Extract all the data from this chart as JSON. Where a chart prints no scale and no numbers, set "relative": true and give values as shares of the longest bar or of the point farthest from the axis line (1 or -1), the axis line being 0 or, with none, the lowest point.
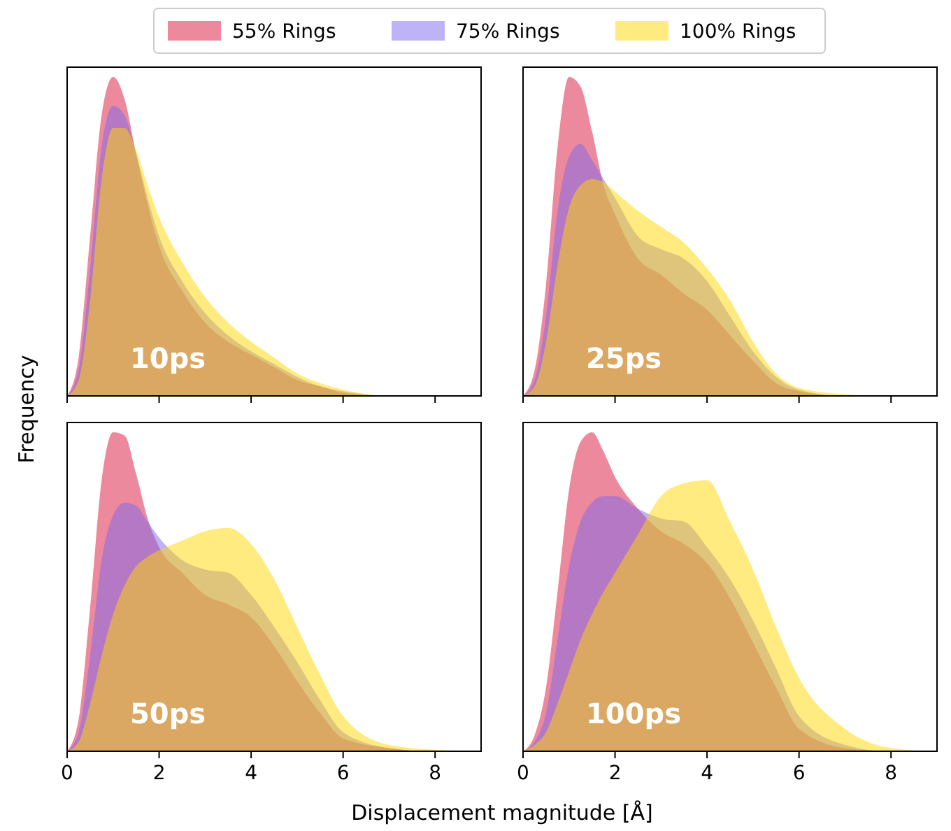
{
  "chart_data": [
    {
      "type": "area",
      "relative": true,
      "legend": "top",
      "ylabel": "Frequency",
      "tick_labels": false,
      "xlim": [
        0,
        9
      ],
      "xticks": [
        0,
        2,
        4,
        6,
        8
      ],
      "annotations": [
        "10ps"
      ],
      "x": [
        0,
        0.25,
        0.5,
        0.75,
        1,
        1.25,
        1.5,
        1.75,
        2,
        2.5,
        3,
        3.5,
        4,
        4.5,
        5,
        5.5,
        6,
        7,
        8,
        9
      ],
      "series": [
        {
          "name": "55% Rings",
          "color": "#dc143c",
          "values": [
            0,
            0.12,
            0.5,
            0.88,
            1.0,
            0.93,
            0.76,
            0.6,
            0.47,
            0.33,
            0.23,
            0.17,
            0.13,
            0.09,
            0.05,
            0.03,
            0.01,
            0,
            0,
            0
          ]
        },
        {
          "name": "75% Rings",
          "color": "#7b68ee",
          "values": [
            0,
            0.08,
            0.4,
            0.78,
            0.91,
            0.88,
            0.76,
            0.62,
            0.5,
            0.36,
            0.26,
            0.19,
            0.14,
            0.1,
            0.06,
            0.03,
            0.015,
            0,
            0,
            0
          ]
        },
        {
          "name": "100% Rings",
          "color": "#ffd700",
          "values": [
            0,
            0.05,
            0.3,
            0.68,
            0.84,
            0.84,
            0.77,
            0.66,
            0.56,
            0.42,
            0.31,
            0.23,
            0.17,
            0.12,
            0.07,
            0.04,
            0.02,
            0,
            0,
            0
          ]
        }
      ]
    },
    {
      "type": "area",
      "relative": true,
      "tick_labels": false,
      "xlim": [
        0,
        9
      ],
      "xticks": [
        0,
        2,
        4,
        6,
        8
      ],
      "annotations": [
        "25ps"
      ],
      "x": [
        0,
        0.25,
        0.5,
        0.75,
        1,
        1.25,
        1.5,
        1.75,
        2,
        2.5,
        3,
        3.5,
        4,
        4.5,
        5,
        5.5,
        6,
        7,
        8,
        9
      ],
      "series": [
        {
          "color": "#dc143c",
          "values": [
            0,
            0.08,
            0.35,
            0.78,
            1.0,
            0.97,
            0.83,
            0.66,
            0.57,
            0.43,
            0.38,
            0.32,
            0.27,
            0.19,
            0.11,
            0.04,
            0.015,
            0,
            0,
            0
          ]
        },
        {
          "color": "#7b68ee",
          "values": [
            0,
            0.05,
            0.25,
            0.58,
            0.75,
            0.79,
            0.74,
            0.68,
            0.62,
            0.5,
            0.46,
            0.43,
            0.36,
            0.25,
            0.14,
            0.06,
            0.02,
            0,
            0,
            0
          ]
        },
        {
          "color": "#ffd700",
          "values": [
            0,
            0.03,
            0.17,
            0.41,
            0.59,
            0.66,
            0.68,
            0.67,
            0.64,
            0.58,
            0.53,
            0.48,
            0.4,
            0.3,
            0.17,
            0.07,
            0.025,
            0.005,
            0,
            0
          ]
        }
      ]
    },
    {
      "type": "area",
      "relative": true,
      "xlabel": "Displacement magnitude [Å]",
      "xlim": [
        0,
        9
      ],
      "xticks": [
        0,
        2,
        4,
        6,
        8
      ],
      "annotations": [
        "50ps"
      ],
      "x": [
        0,
        0.25,
        0.5,
        0.75,
        1,
        1.25,
        1.5,
        1.75,
        2,
        2.5,
        3,
        3.5,
        4,
        4.5,
        5,
        5.5,
        6,
        7,
        8,
        9
      ],
      "series": [
        {
          "color": "#dc143c",
          "values": [
            0,
            0.1,
            0.45,
            0.85,
            1.0,
            0.99,
            0.87,
            0.73,
            0.64,
            0.56,
            0.49,
            0.46,
            0.42,
            0.33,
            0.22,
            0.12,
            0.04,
            0.01,
            0,
            0
          ]
        },
        {
          "color": "#7b68ee",
          "values": [
            0,
            0.06,
            0.3,
            0.6,
            0.74,
            0.78,
            0.77,
            0.72,
            0.67,
            0.6,
            0.57,
            0.56,
            0.49,
            0.39,
            0.28,
            0.16,
            0.06,
            0.01,
            0,
            0
          ]
        },
        {
          "color": "#ffd700",
          "values": [
            0,
            0.03,
            0.15,
            0.3,
            0.43,
            0.52,
            0.58,
            0.61,
            0.63,
            0.66,
            0.69,
            0.7,
            0.65,
            0.54,
            0.39,
            0.24,
            0.11,
            0.02,
            0.005,
            0
          ]
        }
      ]
    },
    {
      "type": "area",
      "relative": true,
      "xlim": [
        0,
        9
      ],
      "xticks": [
        0,
        2,
        4,
        6,
        8
      ],
      "annotations": [
        "100ps"
      ],
      "x": [
        0,
        0.25,
        0.5,
        0.75,
        1,
        1.25,
        1.5,
        1.75,
        2,
        2.5,
        3,
        3.5,
        4,
        4.5,
        5,
        5.5,
        6,
        7,
        8,
        9
      ],
      "series": [
        {
          "color": "#dc143c",
          "values": [
            0,
            0.05,
            0.2,
            0.5,
            0.82,
            0.97,
            1.0,
            0.94,
            0.86,
            0.76,
            0.69,
            0.65,
            0.59,
            0.48,
            0.34,
            0.2,
            0.07,
            0.01,
            0,
            0
          ]
        },
        {
          "color": "#7b68ee",
          "values": [
            0,
            0.03,
            0.12,
            0.35,
            0.58,
            0.72,
            0.78,
            0.8,
            0.8,
            0.76,
            0.73,
            0.72,
            0.64,
            0.54,
            0.41,
            0.26,
            0.11,
            0.02,
            0,
            0
          ]
        },
        {
          "color": "#ffd700",
          "values": [
            0,
            0.02,
            0.06,
            0.15,
            0.25,
            0.35,
            0.43,
            0.5,
            0.56,
            0.68,
            0.8,
            0.84,
            0.85,
            0.72,
            0.57,
            0.39,
            0.23,
            0.07,
            0.01,
            0
          ]
        }
      ]
    }
  ]
}
